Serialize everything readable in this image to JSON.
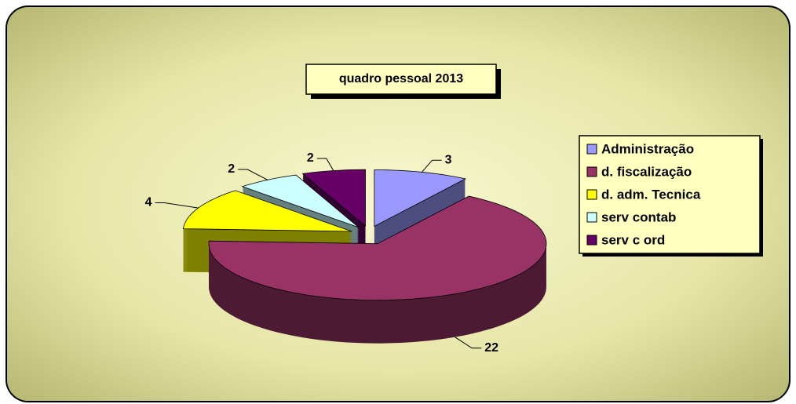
{
  "chart_data": {
    "type": "pie3d",
    "title": "quadro pessoal 2013",
    "categories": [
      "Administração",
      "d. fiscalização",
      "d. adm. Tecnica",
      "serv contab",
      "serv c ord"
    ],
    "values": [
      3,
      22,
      4,
      2,
      2
    ],
    "colors": [
      "#9999ff",
      "#993366",
      "#ffff00",
      "#ccffff",
      "#660066"
    ],
    "legend": "right"
  }
}
